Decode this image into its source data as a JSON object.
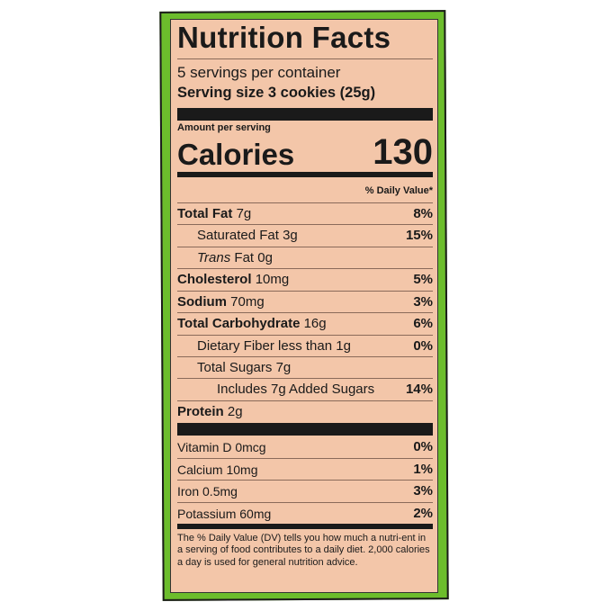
{
  "label": {
    "title": "Nutrition Facts",
    "servings_per_container": "5 servings per container",
    "serving_size": "Serving size 3 cookies (25g)",
    "amount_per_serving": "Amount per serving",
    "calories_label": "Calories",
    "calories_value": "130",
    "daily_value_header": "% Daily Value*",
    "nutrients": [
      {
        "name": "Total Fat",
        "amount": "7g",
        "dv": "8%",
        "bold": true,
        "indent": 0
      },
      {
        "name": "Saturated Fat",
        "amount": "3g",
        "dv": "15%",
        "bold": false,
        "indent": 1
      },
      {
        "name": "Trans",
        "name_rest": "Fat 0g",
        "amount": "",
        "dv": "",
        "bold": false,
        "indent": 1
      },
      {
        "name": "Cholesterol",
        "amount": "10mg",
        "dv": "5%",
        "bold": true,
        "indent": 0
      },
      {
        "name": "Sodium",
        "amount": "70mg",
        "dv": "3%",
        "bold": true,
        "indent": 0
      },
      {
        "name": "Total Carbohydrate",
        "amount": "16g",
        "dv": "6%",
        "bold": true,
        "indent": 0
      },
      {
        "name": "Dietary Fiber less than",
        "amount": "1g",
        "dv": "0%",
        "bold": false,
        "indent": 1
      },
      {
        "name": "Total Sugars",
        "amount": "7g",
        "dv": "",
        "bold": false,
        "indent": 1
      },
      {
        "name": "Includes 7g Added Sugars",
        "amount": "",
        "dv": "14%",
        "bold": false,
        "indent": 2
      },
      {
        "name": "Protein",
        "amount": "2g",
        "dv": "",
        "bold": true,
        "indent": 0
      }
    ],
    "vitamins": [
      {
        "name": "Vitamin D",
        "amount": "0mcg",
        "dv": "0%"
      },
      {
        "name": "Calcium",
        "amount": "10mg",
        "dv": "1%"
      },
      {
        "name": "Iron",
        "amount": "0.5mg",
        "dv": "3%"
      },
      {
        "name": "Potassium",
        "amount": "60mg",
        "dv": "2%"
      }
    ],
    "footnote": "The % Daily Value (DV) tells you how much a nutri-ent in a serving of food contributes to a daily diet. 2,000 calories a day is used for general nutrition advice.",
    "colors": {
      "background": "#f3c6a9",
      "border": "#6cbd2c",
      "ink": "#1a1a1a"
    }
  }
}
